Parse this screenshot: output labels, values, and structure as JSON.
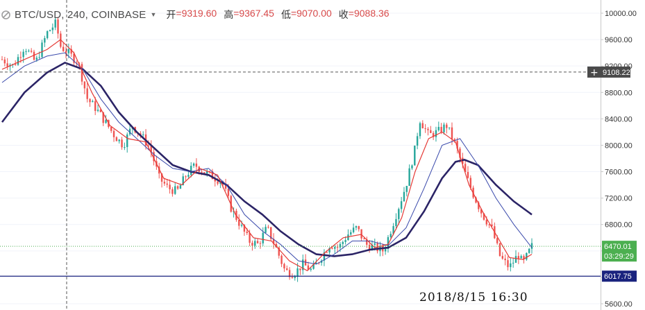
{
  "header": {
    "symbol": "BTC/USD, 240, COINBASE",
    "ohlc": [
      {
        "label": "开",
        "value": "=9319.60"
      },
      {
        "label": "高",
        "value": "=9367.45"
      },
      {
        "label": "低",
        "value": "=9070.00"
      },
      {
        "label": "收",
        "value": "=9088.36"
      }
    ]
  },
  "timestamp": "2018/8/15  16:30",
  "colors": {
    "up": "#26a69a",
    "down": "#ef5350",
    "ma_fast": "#e53935",
    "ma_mid": "#3949ab",
    "ma_slow": "#2b2466",
    "price_line": "#4caf50",
    "level_line": "#1a237e",
    "crosshair": "#555555"
  },
  "chart_data": {
    "type": "candlestick",
    "y_axis": {
      "min": 5600,
      "max": 10100,
      "ticks": [
        "10000.00",
        "9600.00",
        "9200.00",
        "8800.00",
        "8400.00",
        "8000.00",
        "7600.00",
        "7200.00",
        "6800.00",
        "6400.00",
        "6000.00",
        "5600.00"
      ]
    },
    "labels": {
      "crosshair_price": "9108.22",
      "current_price": "6470.01",
      "countdown": "03:29:29",
      "level": "6017.75"
    },
    "values": {
      "crosshair_price": 9108.22,
      "current_price": 6470.01,
      "level": 6017.75
    },
    "bar_count": 200,
    "close_path": [
      [
        0,
        9300
      ],
      [
        5,
        9200
      ],
      [
        10,
        9500
      ],
      [
        15,
        9250
      ],
      [
        20,
        9700
      ],
      [
        24,
        9850
      ],
      [
        26,
        9500
      ],
      [
        30,
        9380
      ],
      [
        34,
        9250
      ],
      [
        38,
        8700
      ],
      [
        42,
        8550
      ],
      [
        46,
        8350
      ],
      [
        50,
        8150
      ],
      [
        54,
        8000
      ],
      [
        58,
        8300
      ],
      [
        62,
        8150
      ],
      [
        66,
        7950
      ],
      [
        70,
        7500
      ],
      [
        74,
        7350
      ],
      [
        78,
        7300
      ],
      [
        82,
        7550
      ],
      [
        86,
        7700
      ],
      [
        90,
        7600
      ],
      [
        94,
        7520
      ],
      [
        98,
        7450
      ],
      [
        102,
        7050
      ],
      [
        106,
        6800
      ],
      [
        110,
        6550
      ],
      [
        114,
        6500
      ],
      [
        118,
        6750
      ],
      [
        122,
        6450
      ],
      [
        126,
        6100
      ],
      [
        130,
        6050
      ],
      [
        134,
        6200
      ],
      [
        138,
        6100
      ],
      [
        142,
        6300
      ],
      [
        146,
        6500
      ],
      [
        150,
        6450
      ],
      [
        154,
        6650
      ],
      [
        158,
        6750
      ],
      [
        162,
        6500
      ],
      [
        166,
        6450
      ],
      [
        170,
        6400
      ],
      [
        172,
        6600
      ],
      [
        176,
        7000
      ],
      [
        180,
        7400
      ],
      [
        184,
        7950
      ],
      [
        186,
        8400
      ],
      [
        190,
        8150
      ],
      [
        194,
        8200
      ],
      [
        198,
        8300
      ],
      [
        202,
        8000
      ],
      [
        206,
        7600
      ],
      [
        210,
        7250
      ],
      [
        214,
        6950
      ],
      [
        218,
        6750
      ],
      [
        222,
        6300
      ],
      [
        226,
        6150
      ],
      [
        230,
        6350
      ],
      [
        232,
        6200
      ],
      [
        236,
        6470
      ]
    ],
    "ma_fast": [
      [
        0,
        9150
      ],
      [
        10,
        9300
      ],
      [
        20,
        9450
      ],
      [
        26,
        9600
      ],
      [
        32,
        9400
      ],
      [
        40,
        8800
      ],
      [
        48,
        8300
      ],
      [
        56,
        8100
      ],
      [
        64,
        8050
      ],
      [
        72,
        7500
      ],
      [
        80,
        7400
      ],
      [
        88,
        7650
      ],
      [
        96,
        7550
      ],
      [
        104,
        6950
      ],
      [
        112,
        6600
      ],
      [
        120,
        6550
      ],
      [
        128,
        6250
      ],
      [
        136,
        6100
      ],
      [
        144,
        6380
      ],
      [
        152,
        6600
      ],
      [
        160,
        6650
      ],
      [
        166,
        6450
      ],
      [
        172,
        6500
      ],
      [
        178,
        6900
      ],
      [
        184,
        7600
      ],
      [
        190,
        8100
      ],
      [
        196,
        8200
      ],
      [
        202,
        8050
      ],
      [
        208,
        7400
      ],
      [
        214,
        7000
      ],
      [
        220,
        6650
      ],
      [
        226,
        6300
      ],
      [
        232,
        6270
      ],
      [
        236,
        6350
      ]
    ],
    "ma_mid": [
      [
        0,
        8950
      ],
      [
        10,
        9200
      ],
      [
        20,
        9350
      ],
      [
        28,
        9400
      ],
      [
        36,
        9150
      ],
      [
        44,
        8700
      ],
      [
        52,
        8350
      ],
      [
        60,
        8100
      ],
      [
        68,
        7850
      ],
      [
        76,
        7650
      ],
      [
        84,
        7600
      ],
      [
        92,
        7650
      ],
      [
        100,
        7400
      ],
      [
        108,
        6950
      ],
      [
        116,
        6700
      ],
      [
        124,
        6500
      ],
      [
        132,
        6250
      ],
      [
        140,
        6200
      ],
      [
        148,
        6350
      ],
      [
        156,
        6550
      ],
      [
        164,
        6550
      ],
      [
        172,
        6480
      ],
      [
        180,
        6750
      ],
      [
        188,
        7350
      ],
      [
        196,
        8000
      ],
      [
        204,
        8100
      ],
      [
        212,
        7700
      ],
      [
        220,
        7200
      ],
      [
        228,
        6800
      ],
      [
        236,
        6450
      ]
    ],
    "ma_slow": [
      [
        0,
        8350
      ],
      [
        10,
        8800
      ],
      [
        20,
        9100
      ],
      [
        28,
        9250
      ],
      [
        36,
        9150
      ],
      [
        44,
        8900
      ],
      [
        52,
        8500
      ],
      [
        60,
        8200
      ],
      [
        68,
        7950
      ],
      [
        76,
        7700
      ],
      [
        84,
        7600
      ],
      [
        92,
        7550
      ],
      [
        100,
        7400
      ],
      [
        108,
        7150
      ],
      [
        116,
        6950
      ],
      [
        124,
        6700
      ],
      [
        132,
        6500
      ],
      [
        140,
        6350
      ],
      [
        148,
        6320
      ],
      [
        156,
        6350
      ],
      [
        164,
        6420
      ],
      [
        172,
        6450
      ],
      [
        180,
        6600
      ],
      [
        188,
        7000
      ],
      [
        196,
        7500
      ],
      [
        202,
        7750
      ],
      [
        206,
        7780
      ],
      [
        212,
        7700
      ],
      [
        220,
        7400
      ],
      [
        228,
        7150
      ],
      [
        236,
        6950
      ]
    ]
  }
}
